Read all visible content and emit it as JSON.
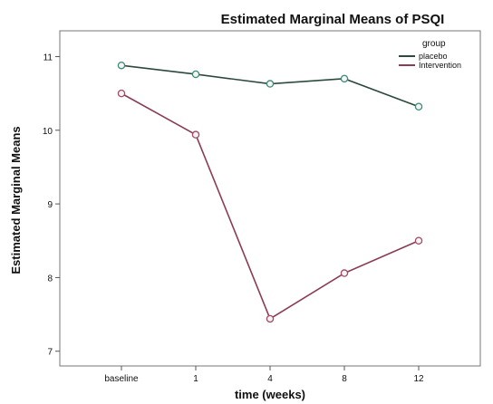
{
  "chart_data": {
    "type": "line",
    "title": "Estimated Marginal Means of PSQI",
    "xlabel": "time (weeks)",
    "ylabel": "Estimated Marginal Means",
    "categories": [
      "baseline",
      "1",
      "4",
      "8",
      "12"
    ],
    "yticks": [
      "7",
      "8",
      "9",
      "10",
      "11"
    ],
    "ylim": [
      6.8,
      11.35
    ],
    "grid": false,
    "legend": {
      "title": "group",
      "placement": "top-right"
    },
    "series": [
      {
        "name": "placebo",
        "values": [
          10.88,
          10.76,
          10.63,
          10.7,
          10.32
        ],
        "color": "#2c4a3c",
        "marker_color": "#3e8a78"
      },
      {
        "name": "Intervention",
        "values": [
          10.5,
          9.94,
          7.44,
          8.06,
          8.5
        ],
        "color": "#8a3c56",
        "marker_color": "#a24a66"
      }
    ]
  }
}
